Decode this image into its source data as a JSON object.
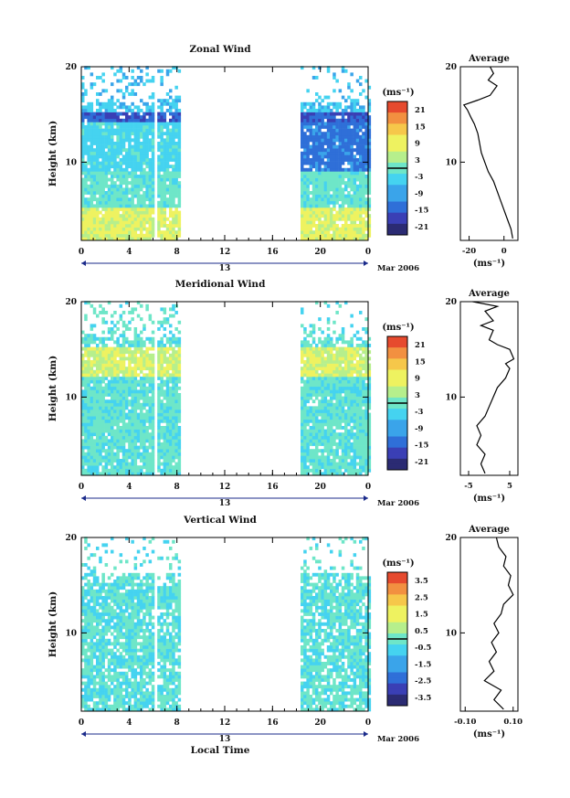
{
  "colors": {
    "scale": [
      "#2b2b73",
      "#3a3fb5",
      "#2f6fd8",
      "#3aa4ea",
      "#45d3f0",
      "#6ee6c8",
      "#b6ef8c",
      "#eef260",
      "#f6c74a",
      "#f29040",
      "#e64a2e"
    ]
  },
  "x_axis": {
    "ticks": [
      "0",
      "4",
      "8",
      "12",
      "16",
      "20",
      "0"
    ],
    "day": "13",
    "month": "Mar 2006",
    "label": "Local Time"
  },
  "chart_data": [
    {
      "type": "heatmap",
      "title": "Zonal Wind",
      "ylabel": "Height (km)",
      "yticks": [
        "10",
        "20"
      ],
      "ylim": [
        1.8,
        20
      ],
      "xlim": [
        0,
        24
      ],
      "data_gaps_hours": [
        [
          8.3,
          18.0
        ]
      ],
      "colorbar": {
        "unit": "(ms⁻¹)",
        "ticks": [
          "21",
          "15",
          "9",
          "3",
          "-3",
          "-9",
          "-15",
          "-21"
        ],
        "range": [
          -24,
          24
        ]
      },
      "profile": {
        "title": "Average",
        "xticks": [
          "-20",
          "0"
        ],
        "xlim": [
          -25,
          8
        ],
        "xlabel": "(ms⁻¹)",
        "yticks": [
          "10",
          "20"
        ],
        "points": [
          [
            5,
            2
          ],
          [
            4,
            3
          ],
          [
            2,
            4
          ],
          [
            0,
            5
          ],
          [
            -2,
            6
          ],
          [
            -4,
            7
          ],
          [
            -6,
            8
          ],
          [
            -9,
            9
          ],
          [
            -11,
            10
          ],
          [
            -13,
            11
          ],
          [
            -14,
            12
          ],
          [
            -15,
            13
          ],
          [
            -17,
            14
          ],
          [
            -19,
            14.7
          ],
          [
            -21,
            15.5
          ],
          [
            -23,
            16
          ],
          [
            -15,
            16.5
          ],
          [
            -8,
            17
          ],
          [
            -4,
            18
          ],
          [
            -9,
            18.6
          ],
          [
            -6,
            19.3
          ],
          [
            -8,
            20
          ]
        ]
      }
    },
    {
      "type": "heatmap",
      "title": "Meridional Wind",
      "ylabel": "Height (km)",
      "yticks": [
        "10",
        "20"
      ],
      "ylim": [
        1.8,
        20
      ],
      "xlim": [
        0,
        24
      ],
      "data_gaps_hours": [
        [
          8.3,
          18.0
        ]
      ],
      "colorbar": {
        "unit": "(ms⁻¹)",
        "ticks": [
          "21",
          "15",
          "9",
          "3",
          "-3",
          "-9",
          "-15",
          "-21"
        ],
        "range": [
          -24,
          24
        ]
      },
      "profile": {
        "title": "Average",
        "xticks": [
          "-5",
          "5"
        ],
        "xlim": [
          -7,
          7
        ],
        "xlabel": "(ms⁻¹)",
        "yticks": [
          "10",
          "20"
        ],
        "points": [
          [
            -1,
            2
          ],
          [
            -2,
            3
          ],
          [
            -1,
            4
          ],
          [
            -3,
            5
          ],
          [
            -2,
            6
          ],
          [
            -3,
            7
          ],
          [
            -1,
            8
          ],
          [
            0,
            9
          ],
          [
            1,
            10
          ],
          [
            2,
            11
          ],
          [
            4,
            12
          ],
          [
            5,
            13
          ],
          [
            4,
            13.5
          ],
          [
            6,
            14
          ],
          [
            5,
            15
          ],
          [
            2,
            15.5
          ],
          [
            0,
            16
          ],
          [
            1,
            17
          ],
          [
            -2,
            17.5
          ],
          [
            1,
            18
          ],
          [
            -1,
            19
          ],
          [
            2,
            19.5
          ],
          [
            -4,
            20
          ]
        ]
      }
    },
    {
      "type": "heatmap",
      "title": "Vertical Wind",
      "ylabel": "Height (km)",
      "yticks": [
        "10",
        "20"
      ],
      "ylim": [
        1.8,
        20
      ],
      "xlim": [
        0,
        24
      ],
      "data_gaps_hours": [
        [
          8.3,
          18.0
        ]
      ],
      "colorbar": {
        "unit": "(ms⁻¹)",
        "ticks": [
          "3.5",
          "2.5",
          "1.5",
          "0.5",
          "-0.5",
          "-1.5",
          "-2.5",
          "-3.5"
        ],
        "range": [
          -4,
          4
        ]
      },
      "profile": {
        "title": "Average",
        "xticks": [
          "-0.10",
          "0.10"
        ],
        "xlim": [
          -0.12,
          0.12
        ],
        "xlabel": "(ms⁻¹)",
        "yticks": [
          "10",
          "20"
        ],
        "points": [
          [
            0.06,
            2
          ],
          [
            0.02,
            3
          ],
          [
            0.05,
            4
          ],
          [
            -0.02,
            5
          ],
          [
            0.02,
            6
          ],
          [
            0.0,
            7
          ],
          [
            0.03,
            8
          ],
          [
            0.01,
            9
          ],
          [
            0.04,
            10
          ],
          [
            0.02,
            11
          ],
          [
            0.05,
            12
          ],
          [
            0.06,
            13
          ],
          [
            0.1,
            14
          ],
          [
            0.08,
            15
          ],
          [
            0.09,
            16
          ],
          [
            0.06,
            17
          ],
          [
            0.07,
            18
          ],
          [
            0.04,
            19
          ],
          [
            0.03,
            20
          ]
        ]
      }
    }
  ]
}
